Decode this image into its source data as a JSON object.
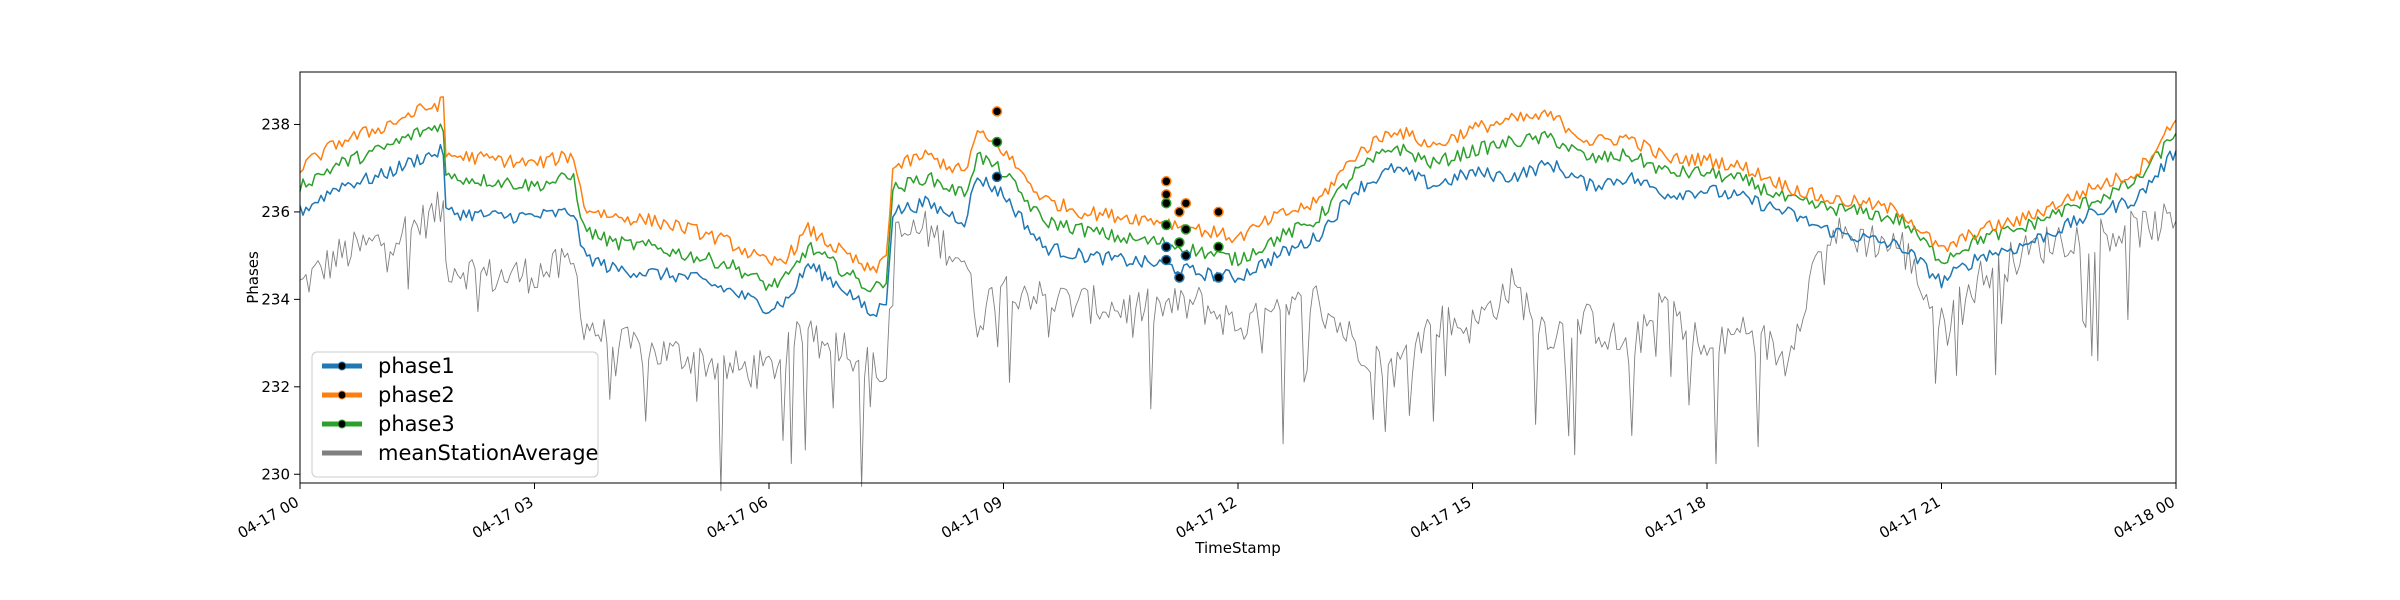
{
  "chart_data": {
    "type": "line",
    "title": "",
    "xlabel": "TimeStamp",
    "ylabel": "Phases",
    "xlim": [
      "2021-04-17T00:00",
      "2021-04-18T00:00"
    ],
    "ylim": [
      229.8,
      239.2
    ],
    "x_ticks": [
      {
        "t": "2021-04-17T00:00",
        "label": "04-17 00"
      },
      {
        "t": "2021-04-17T03:00",
        "label": "04-17 03"
      },
      {
        "t": "2021-04-17T06:00",
        "label": "04-17 06"
      },
      {
        "t": "2021-04-17T09:00",
        "label": "04-17 09"
      },
      {
        "t": "2021-04-17T12:00",
        "label": "04-17 12"
      },
      {
        "t": "2021-04-17T15:00",
        "label": "04-17 15"
      },
      {
        "t": "2021-04-17T18:00",
        "label": "04-17 18"
      },
      {
        "t": "2021-04-17T21:00",
        "label": "04-17 21"
      },
      {
        "t": "2021-04-18T00:00",
        "label": "04-18 00"
      }
    ],
    "y_ticks": [
      {
        "v": 230,
        "label": "230"
      },
      {
        "v": 232,
        "label": "232"
      },
      {
        "v": 234,
        "label": "234"
      },
      {
        "v": 236,
        "label": "236"
      },
      {
        "v": 238,
        "label": "238"
      }
    ],
    "grid": false,
    "legend_position": "bottom-left",
    "series": [
      {
        "name": "phase1",
        "color": "#1f77b4",
        "x": [
          "2021-04-17T00:00",
          "2021-04-17T00:30",
          "2021-04-17T01:00",
          "2021-04-17T01:30",
          "2021-04-17T01:50",
          "2021-04-17T01:52",
          "2021-04-17T02:30",
          "2021-04-17T03:00",
          "2021-04-17T03:30",
          "2021-04-17T03:38",
          "2021-04-17T04:00",
          "2021-04-17T04:30",
          "2021-04-17T05:00",
          "2021-04-17T05:30",
          "2021-04-17T06:00",
          "2021-04-17T06:15",
          "2021-04-17T06:30",
          "2021-04-17T06:45",
          "2021-04-17T07:00",
          "2021-04-17T07:20",
          "2021-04-17T07:30",
          "2021-04-17T07:35",
          "2021-04-17T08:00",
          "2021-04-17T08:30",
          "2021-04-17T08:40",
          "2021-04-17T09:00",
          "2021-04-17T09:30",
          "2021-04-17T10:00",
          "2021-04-17T10:30",
          "2021-04-17T11:00",
          "2021-04-17T11:30",
          "2021-04-17T12:00",
          "2021-04-17T12:30",
          "2021-04-17T13:00",
          "2021-04-17T13:30",
          "2021-04-17T14:00",
          "2021-04-17T14:30",
          "2021-04-17T15:00",
          "2021-04-17T15:30",
          "2021-04-17T16:00",
          "2021-04-17T16:30",
          "2021-04-17T17:00",
          "2021-04-17T17:30",
          "2021-04-17T18:00",
          "2021-04-17T18:30",
          "2021-04-17T19:00",
          "2021-04-17T19:30",
          "2021-04-17T20:00",
          "2021-04-17T20:30",
          "2021-04-17T21:00",
          "2021-04-17T21:30",
          "2021-04-17T22:00",
          "2021-04-17T22:30",
          "2021-04-17T23:00",
          "2021-04-17T23:30",
          "2021-04-18T00:00"
        ],
        "y": [
          236.0,
          236.6,
          236.8,
          237.2,
          237.4,
          236.0,
          235.9,
          235.9,
          236.0,
          235.0,
          234.7,
          234.6,
          234.5,
          234.2,
          233.8,
          234.0,
          234.8,
          234.5,
          234.2,
          233.6,
          234.0,
          236.0,
          236.2,
          235.8,
          236.8,
          236.4,
          235.2,
          235.0,
          234.9,
          234.8,
          234.6,
          234.5,
          235.0,
          235.4,
          236.5,
          237.0,
          236.6,
          236.9,
          236.8,
          237.1,
          236.6,
          236.8,
          236.4,
          236.5,
          236.3,
          236.0,
          235.6,
          235.4,
          235.2,
          234.4,
          235.0,
          235.2,
          235.6,
          236.0,
          236.3,
          237.4
        ]
      },
      {
        "name": "phase2",
        "color": "#ff7f0e",
        "x": [
          "2021-04-17T00:00",
          "2021-04-17T00:30",
          "2021-04-17T01:00",
          "2021-04-17T01:30",
          "2021-04-17T01:50",
          "2021-04-17T01:52",
          "2021-04-17T02:30",
          "2021-04-17T03:00",
          "2021-04-17T03:30",
          "2021-04-17T03:38",
          "2021-04-17T04:00",
          "2021-04-17T04:30",
          "2021-04-17T05:00",
          "2021-04-17T05:30",
          "2021-04-17T06:00",
          "2021-04-17T06:15",
          "2021-04-17T06:30",
          "2021-04-17T06:45",
          "2021-04-17T07:00",
          "2021-04-17T07:20",
          "2021-04-17T07:30",
          "2021-04-17T07:35",
          "2021-04-17T08:00",
          "2021-04-17T08:30",
          "2021-04-17T08:40",
          "2021-04-17T09:00",
          "2021-04-17T09:30",
          "2021-04-17T10:00",
          "2021-04-17T10:30",
          "2021-04-17T11:00",
          "2021-04-17T11:30",
          "2021-04-17T12:00",
          "2021-04-17T12:30",
          "2021-04-17T13:00",
          "2021-04-17T13:30",
          "2021-04-17T14:00",
          "2021-04-17T14:30",
          "2021-04-17T15:00",
          "2021-04-17T15:30",
          "2021-04-17T16:00",
          "2021-04-17T16:30",
          "2021-04-17T17:00",
          "2021-04-17T17:30",
          "2021-04-17T18:00",
          "2021-04-17T18:30",
          "2021-04-17T19:00",
          "2021-04-17T19:30",
          "2021-04-17T20:00",
          "2021-04-17T20:30",
          "2021-04-17T21:00",
          "2021-04-17T21:30",
          "2021-04-17T22:00",
          "2021-04-17T22:30",
          "2021-04-17T23:00",
          "2021-04-17T23:30",
          "2021-04-18T00:00"
        ],
        "y": [
          237.0,
          237.6,
          237.9,
          238.3,
          238.5,
          237.3,
          237.2,
          237.1,
          237.3,
          236.1,
          235.9,
          235.8,
          235.6,
          235.3,
          234.8,
          235.0,
          235.6,
          235.3,
          235.0,
          234.6,
          235.0,
          237.0,
          237.3,
          236.9,
          237.8,
          237.4,
          236.3,
          236.0,
          235.9,
          235.8,
          235.6,
          235.4,
          235.9,
          236.2,
          237.3,
          237.9,
          237.5,
          237.9,
          238.1,
          238.2,
          237.6,
          237.7,
          237.2,
          237.2,
          237.0,
          236.6,
          236.3,
          236.2,
          236.0,
          235.1,
          235.6,
          235.8,
          236.2,
          236.6,
          236.9,
          238.1
        ]
      },
      {
        "name": "phase3",
        "color": "#2ca02c",
        "x": [
          "2021-04-17T00:00",
          "2021-04-17T00:30",
          "2021-04-17T01:00",
          "2021-04-17T01:30",
          "2021-04-17T01:50",
          "2021-04-17T01:52",
          "2021-04-17T02:30",
          "2021-04-17T03:00",
          "2021-04-17T03:30",
          "2021-04-17T03:38",
          "2021-04-17T04:00",
          "2021-04-17T04:30",
          "2021-04-17T05:00",
          "2021-04-17T05:30",
          "2021-04-17T06:00",
          "2021-04-17T06:15",
          "2021-04-17T06:30",
          "2021-04-17T06:45",
          "2021-04-17T07:00",
          "2021-04-17T07:20",
          "2021-04-17T07:30",
          "2021-04-17T07:35",
          "2021-04-17T08:00",
          "2021-04-17T08:30",
          "2021-04-17T08:40",
          "2021-04-17T09:00",
          "2021-04-17T09:30",
          "2021-04-17T10:00",
          "2021-04-17T10:30",
          "2021-04-17T11:00",
          "2021-04-17T11:30",
          "2021-04-17T12:00",
          "2021-04-17T12:30",
          "2021-04-17T13:00",
          "2021-04-17T13:30",
          "2021-04-17T14:00",
          "2021-04-17T14:30",
          "2021-04-17T15:00",
          "2021-04-17T15:30",
          "2021-04-17T16:00",
          "2021-04-17T16:30",
          "2021-04-17T17:00",
          "2021-04-17T17:30",
          "2021-04-17T18:00",
          "2021-04-17T18:30",
          "2021-04-17T19:00",
          "2021-04-17T19:30",
          "2021-04-17T20:00",
          "2021-04-17T20:30",
          "2021-04-17T21:00",
          "2021-04-17T21:30",
          "2021-04-17T22:00",
          "2021-04-17T22:30",
          "2021-04-17T23:00",
          "2021-04-17T23:30",
          "2021-04-18T00:00"
        ],
        "y": [
          236.6,
          237.1,
          237.4,
          237.8,
          238.0,
          236.8,
          236.7,
          236.6,
          236.8,
          235.6,
          235.3,
          235.2,
          235.0,
          234.8,
          234.3,
          234.5,
          235.2,
          234.9,
          234.6,
          234.2,
          234.5,
          236.5,
          236.8,
          236.4,
          237.3,
          236.9,
          235.8,
          235.6,
          235.4,
          235.3,
          235.1,
          234.9,
          235.4,
          235.8,
          236.9,
          237.5,
          237.1,
          237.4,
          237.6,
          237.7,
          237.2,
          237.3,
          236.9,
          236.9,
          236.7,
          236.3,
          236.1,
          236.0,
          235.8,
          234.9,
          235.4,
          235.6,
          236.0,
          236.3,
          236.7,
          237.8
        ]
      },
      {
        "name": "meanStationAverage",
        "color": "#808080",
        "x": [
          "2021-04-17T00:00",
          "2021-04-17T00:30",
          "2021-04-17T01:00",
          "2021-04-17T01:30",
          "2021-04-17T01:50",
          "2021-04-17T01:52",
          "2021-04-17T02:30",
          "2021-04-17T03:00",
          "2021-04-17T03:30",
          "2021-04-17T03:38",
          "2021-04-17T04:00",
          "2021-04-17T04:30",
          "2021-04-17T05:00",
          "2021-04-17T05:30",
          "2021-04-17T06:00",
          "2021-04-17T06:15",
          "2021-04-17T06:30",
          "2021-04-17T06:45",
          "2021-04-17T07:00",
          "2021-04-17T07:20",
          "2021-04-17T07:30",
          "2021-04-17T07:35",
          "2021-04-17T08:00",
          "2021-04-17T08:30",
          "2021-04-17T08:40",
          "2021-04-17T09:00",
          "2021-04-17T09:30",
          "2021-04-17T10:00",
          "2021-04-17T10:30",
          "2021-04-17T11:00",
          "2021-04-17T11:30",
          "2021-04-17T12:00",
          "2021-04-17T12:30",
          "2021-04-17T13:00",
          "2021-04-17T13:30",
          "2021-04-17T14:00",
          "2021-04-17T14:30",
          "2021-04-17T15:00",
          "2021-04-17T15:30",
          "2021-04-17T16:00",
          "2021-04-17T16:30",
          "2021-04-17T17:00",
          "2021-04-17T17:30",
          "2021-04-17T18:00",
          "2021-04-17T18:30",
          "2021-04-17T19:00",
          "2021-04-17T19:30",
          "2021-04-17T20:00",
          "2021-04-17T20:30",
          "2021-04-17T21:00",
          "2021-04-17T21:30",
          "2021-04-17T22:00",
          "2021-04-17T22:30",
          "2021-04-17T23:00",
          "2021-04-17T23:30",
          "2021-04-18T00:00"
        ],
        "y": [
          234.3,
          235.0,
          235.3,
          235.7,
          236.1,
          234.8,
          234.5,
          234.6,
          234.8,
          233.5,
          233.0,
          232.8,
          232.7,
          232.4,
          232.4,
          232.8,
          233.4,
          233.2,
          232.9,
          232.4,
          232.2,
          235.4,
          235.6,
          234.9,
          233.5,
          234.5,
          234.0,
          233.9,
          233.8,
          233.8,
          233.9,
          233.4,
          233.6,
          234.0,
          233.0,
          232.4,
          233.5,
          233.4,
          234.3,
          233.2,
          233.5,
          232.8,
          234.0,
          232.7,
          233.4,
          232.6,
          235.5,
          235.4,
          235.2,
          233.4,
          234.5,
          235.0,
          235.4,
          235.5,
          235.6,
          235.8
        ]
      }
    ],
    "markers": [
      {
        "series": "phase1",
        "color": "#1f77b4",
        "points": [
          [
            "2021-04-17T08:55",
            236.8
          ],
          [
            "2021-04-17T11:05",
            235.2
          ],
          [
            "2021-04-17T11:05",
            234.9
          ],
          [
            "2021-04-17T11:15",
            234.5
          ],
          [
            "2021-04-17T11:20",
            235.0
          ],
          [
            "2021-04-17T11:45",
            234.5
          ]
        ]
      },
      {
        "series": "phase2",
        "color": "#ff7f0e",
        "points": [
          [
            "2021-04-17T08:55",
            238.3
          ],
          [
            "2021-04-17T11:05",
            236.7
          ],
          [
            "2021-04-17T11:05",
            236.4
          ],
          [
            "2021-04-17T11:15",
            236.0
          ],
          [
            "2021-04-17T11:20",
            236.2
          ],
          [
            "2021-04-17T11:45",
            236.0
          ]
        ]
      },
      {
        "series": "phase3",
        "color": "#2ca02c",
        "points": [
          [
            "2021-04-17T08:55",
            237.6
          ],
          [
            "2021-04-17T11:05",
            236.2
          ],
          [
            "2021-04-17T11:05",
            235.7
          ],
          [
            "2021-04-17T11:15",
            235.3
          ],
          [
            "2021-04-17T11:20",
            235.6
          ],
          [
            "2021-04-17T11:45",
            235.2
          ]
        ]
      }
    ]
  }
}
